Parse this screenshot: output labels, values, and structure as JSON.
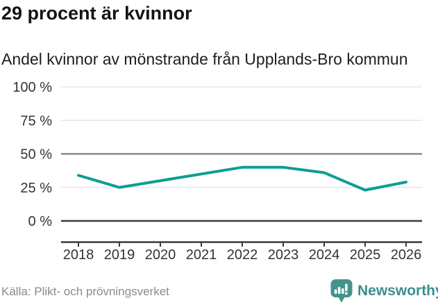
{
  "chart_data": {
    "type": "line",
    "title": "29 procent är kvinnor",
    "subtitle": "Andel kvinnor av mönstrande från Upplands-Bro kommun",
    "categories": [
      "2018",
      "2019",
      "2020",
      "2021",
      "2022",
      "2023",
      "2024",
      "2025",
      "2026"
    ],
    "values": [
      34,
      25,
      30,
      35,
      40,
      40,
      36,
      23,
      29
    ],
    "xlabel": "",
    "ylabel": "",
    "ylim": [
      0,
      100
    ],
    "yticks": [
      0,
      25,
      50,
      75,
      100
    ],
    "ytick_suffix": " %",
    "grid": "horizontal",
    "gridline_emphasis": {
      "0": "dark",
      "50": "mid"
    },
    "legend": "none"
  },
  "footer": {
    "source": "Källa: Plikt- och prövningsverket",
    "brand": "Newsworthy"
  },
  "colors": {
    "line": "#0d9e92",
    "grid_light": "#e2e2e2",
    "grid_mid": "#6e6e6e",
    "axis_dark": "#3a3a3a",
    "text_axis": "#333333",
    "text_muted": "#8a8a8a",
    "brand_teal": "#43948d",
    "brand_text": "#3a8e8b"
  }
}
